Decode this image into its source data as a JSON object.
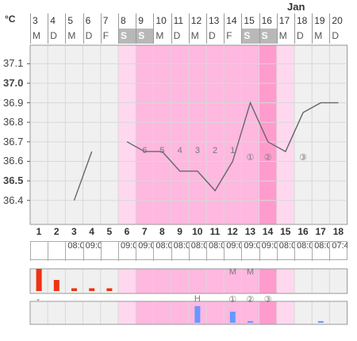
{
  "unit_label": "°C",
  "month_label": "Jan",
  "day_numbers": [
    "3",
    "4",
    "5",
    "6",
    "7",
    "8",
    "9",
    "10",
    "11",
    "12",
    "13",
    "14",
    "15",
    "16",
    "17",
    "18",
    "19",
    "20"
  ],
  "weekday_labels": [
    "M",
    "D",
    "M",
    "D",
    "F",
    "S",
    "S",
    "M",
    "D",
    "M",
    "D",
    "F",
    "S",
    "S",
    "M",
    "D",
    "M",
    "D"
  ],
  "y_tick_labels": [
    "37.1",
    "37.0",
    "36.9",
    "36.8",
    "36.7",
    "36.6",
    "36.5",
    "36.4"
  ],
  "bold_ticks": [
    "37.0",
    "36.5"
  ],
  "cycle_day_labels": [
    "1",
    "2",
    "3",
    "4",
    "5",
    "6",
    "7",
    "8",
    "9",
    "10",
    "11",
    "12",
    "13",
    "14",
    "15",
    "16",
    "17",
    "18"
  ],
  "times": [
    "",
    "",
    "08:00",
    "09:00",
    "",
    "09:00",
    "09:00",
    "08:00",
    "08:00",
    "08:00",
    "08:00",
    "09:00",
    "09:00",
    "09:00",
    "08:00",
    "08:00",
    "08:00",
    "07:45"
  ],
  "temp_marks": [
    {
      "day": 7,
      "text": "6",
      "temp": 36.65
    },
    {
      "day": 8,
      "text": "5",
      "temp": 36.65
    },
    {
      "day": 9,
      "text": "4",
      "temp": 36.65
    },
    {
      "day": 10,
      "text": "3",
      "temp": 36.65
    },
    {
      "day": 11,
      "text": "2",
      "temp": 36.65
    },
    {
      "day": 12,
      "text": "1",
      "temp": 36.65
    },
    {
      "day": 13,
      "text": "①",
      "temp": 36.62
    },
    {
      "day": 14,
      "text": "②",
      "temp": 36.62
    },
    {
      "day": 16,
      "text": "③",
      "temp": 36.62
    }
  ],
  "mucus_marks": [
    {
      "day": 12,
      "text": "M"
    },
    {
      "day": 13,
      "text": "M"
    }
  ],
  "cervix_marks": [
    {
      "day": 10,
      "text": "H"
    },
    {
      "day": 12,
      "text": "①"
    },
    {
      "day": 13,
      "text": "②"
    },
    {
      "day": 14,
      "text": "③"
    }
  ],
  "bleeding_marker": "-",
  "colors": {
    "pink_light": "#ffd8f0",
    "pink": "#ffb8e0",
    "pink_dark": "#ff9ccd",
    "bleeding": "#ee3311",
    "bar_blue": "#6699ff",
    "line": "#666666"
  },
  "chart_data": {
    "type": "line",
    "x_label": "",
    "y_label": "°C",
    "ylim": [
      36.35,
      37.15
    ],
    "segments": [
      [
        {
          "day": 3,
          "temp": 36.4
        },
        {
          "day": 4,
          "temp": 36.65
        }
      ],
      [
        {
          "day": 6,
          "temp": 36.7
        },
        {
          "day": 7,
          "temp": 36.65
        },
        {
          "day": 8,
          "temp": 36.65
        },
        {
          "day": 9,
          "temp": 36.55
        },
        {
          "day": 10,
          "temp": 36.55
        },
        {
          "day": 11,
          "temp": 36.45
        },
        {
          "day": 12,
          "temp": 36.6
        },
        {
          "day": 13,
          "temp": 36.9
        },
        {
          "day": 14,
          "temp": 36.7
        },
        {
          "day": 15,
          "temp": 36.65
        },
        {
          "day": 16,
          "temp": 36.85
        },
        {
          "day": 17,
          "temp": 36.9
        },
        {
          "day": 18,
          "temp": 36.9
        }
      ]
    ],
    "bleeding_levels": [
      {
        "day": 1,
        "value": 4
      },
      {
        "day": 2,
        "value": 2
      },
      {
        "day": 3,
        "value": 0.5
      },
      {
        "day": 4,
        "value": 0.5
      },
      {
        "day": 5,
        "value": 0.5
      }
    ],
    "secondary_bars": [
      {
        "day": 10,
        "value": 3
      },
      {
        "day": 12,
        "value": 2
      },
      {
        "day": 13,
        "value": 0.3
      },
      {
        "day": 17,
        "value": 0.3
      }
    ]
  }
}
